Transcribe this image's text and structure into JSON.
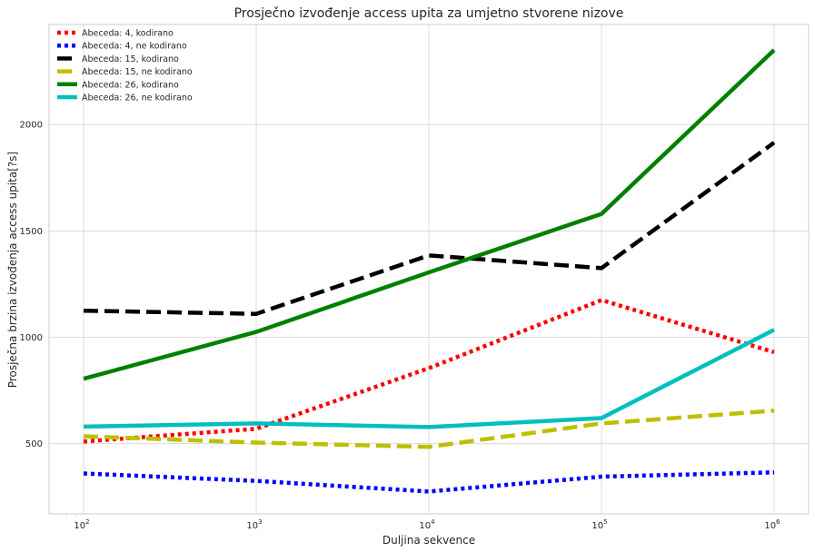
{
  "chart_data": {
    "type": "line",
    "title": "Prosječno izvođenje access upita za umjetno stvorene nizove",
    "xlabel": "Duljina sekvence",
    "ylabel": "Prosječna brzina izvođenja access upita[?s]",
    "xscale": "log",
    "x": [
      100,
      1000,
      10000,
      100000,
      1000000
    ],
    "x_tick_labels": [
      {
        "base": "10",
        "exp": "2"
      },
      {
        "base": "10",
        "exp": "3"
      },
      {
        "base": "10",
        "exp": "4"
      },
      {
        "base": "10",
        "exp": "5"
      },
      {
        "base": "10",
        "exp": "6"
      }
    ],
    "ylim": [
      170,
      2470
    ],
    "yticks": [
      500,
      1000,
      1500,
      2000
    ],
    "grid": true,
    "legend_position": "top-left",
    "series": [
      {
        "name": "Abeceda: 4, kodirano",
        "values": [
          510,
          570,
          855,
          1175,
          930
        ],
        "color": "#ff0000",
        "style": "dotted"
      },
      {
        "name": "Abeceda: 4, ne kodirano",
        "values": [
          360,
          325,
          275,
          345,
          365
        ],
        "color": "#0000ff",
        "style": "dotted"
      },
      {
        "name": "Abeceda: 15, kodirano",
        "values": [
          1125,
          1110,
          1385,
          1325,
          1915
        ],
        "color": "#000000",
        "style": "dashed"
      },
      {
        "name": "Abeceda: 15, ne kodirano",
        "values": [
          535,
          505,
          485,
          595,
          655
        ],
        "color": "#bfbf00",
        "style": "dashed"
      },
      {
        "name": "Abeceda: 26, kodirano",
        "values": [
          805,
          1025,
          1305,
          1580,
          2350
        ],
        "color": "#008000",
        "style": "solid"
      },
      {
        "name": "Abeceda: 26, ne kodirano",
        "values": [
          580,
          595,
          578,
          620,
          1035
        ],
        "color": "#00bfbf",
        "style": "solid"
      }
    ]
  }
}
